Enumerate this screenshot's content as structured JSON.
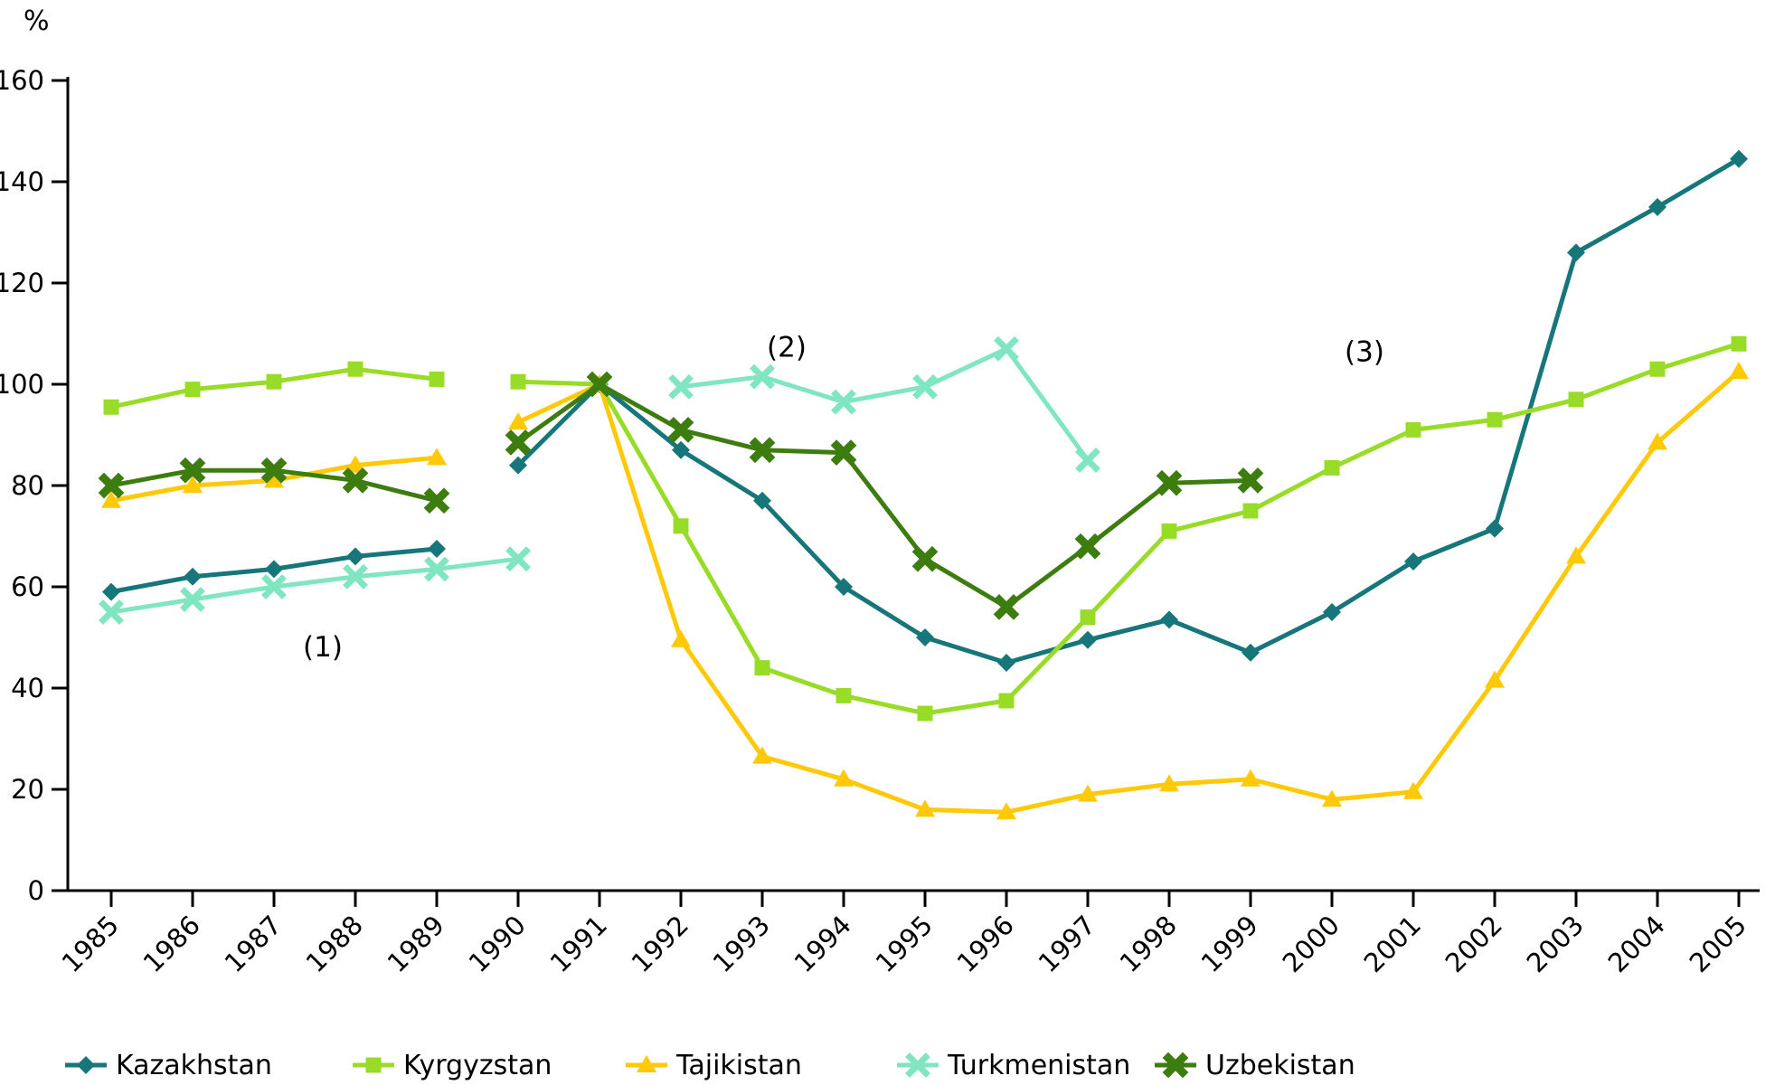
{
  "chart_data": {
    "type": "line",
    "title": "",
    "ylabel": "%",
    "xlabel": "",
    "ylim": [
      0,
      160
    ],
    "yticks": [
      0,
      20,
      40,
      60,
      80,
      100,
      120,
      140,
      160
    ],
    "xlim": [
      1985,
      2005
    ],
    "xtick_labels": [
      "1985",
      "1986",
      "1987",
      "1988",
      "1989",
      "1990",
      "1991",
      "1992",
      "1993",
      "1994",
      "1995",
      "1996",
      "1997",
      "1998",
      "1999",
      "2000",
      "2001",
      "2002",
      "2003",
      "2004",
      "2005"
    ],
    "grid": false,
    "legend_position": "bottom",
    "axis_color": "#000000",
    "series": [
      {
        "name": "Kazakhstan",
        "color": "#17767a",
        "marker": "diamond",
        "segments": [
          {
            "start": 1985,
            "values": [
              59,
              62,
              63.5,
              66,
              67.5
            ]
          },
          {
            "start": 1990,
            "values": [
              84,
              100,
              87,
              77,
              60,
              50,
              45,
              49.5,
              53.5,
              47,
              55,
              65,
              71.5,
              126,
              135,
              144.5
            ]
          }
        ]
      },
      {
        "name": "Kyrgyzstan",
        "color": "#98dc28",
        "marker": "square",
        "segments": [
          {
            "start": 1985,
            "values": [
              95.5,
              99,
              100.5,
              103,
              101
            ]
          },
          {
            "start": 1990,
            "values": [
              100.5,
              100,
              72,
              44,
              38.5,
              35,
              37.5,
              54,
              71,
              75,
              83.5,
              91,
              93,
              97,
              103,
              108
            ]
          }
        ]
      },
      {
        "name": "Tajikistan",
        "color": "#ffc908",
        "marker": "triangle",
        "segments": [
          {
            "start": 1985,
            "values": [
              77,
              80,
              81,
              84,
              85.5
            ]
          },
          {
            "start": 1990,
            "values": [
              92.5,
              100,
              49.5,
              26.5,
              22,
              16,
              15.5,
              19,
              21,
              22,
              18,
              19.5,
              41.5,
              66,
              88.5,
              102.5
            ]
          }
        ]
      },
      {
        "name": "Turkmenistan",
        "color": "#80e6c2",
        "marker": "x",
        "segments": [
          {
            "start": 1985,
            "values": [
              55,
              57.5,
              60,
              62,
              63.5,
              65.5
            ]
          },
          {
            "start": 1992,
            "values": [
              99.5,
              101.5,
              96.5,
              99.5,
              107,
              85
            ]
          }
        ]
      },
      {
        "name": "Uzbekistan",
        "color": "#3d7c0f",
        "marker": "x-bold",
        "segments": [
          {
            "start": 1985,
            "values": [
              80,
              83,
              83,
              81,
              77
            ]
          },
          {
            "start": 1990,
            "values": [
              88.5,
              100,
              91,
              87,
              86.5,
              65.5,
              56,
              68,
              80.5,
              81
            ]
          }
        ]
      }
    ],
    "annotations": [
      {
        "label": "(1)",
        "year": 1987.6,
        "value": 48
      },
      {
        "label": "(2)",
        "year": 1993.3,
        "value": 107.2
      },
      {
        "label": "(3)",
        "year": 2000.4,
        "value": 106.3
      }
    ]
  }
}
